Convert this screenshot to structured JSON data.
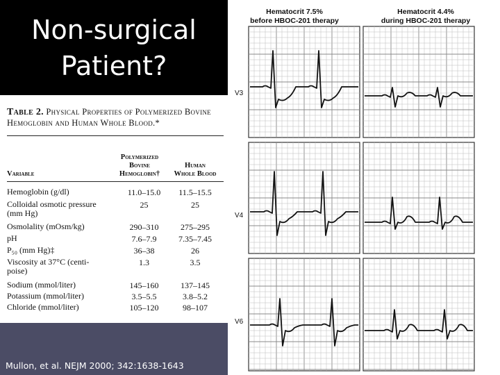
{
  "slide": {
    "title": "Non-surgical\nPatient?",
    "citation": "Mullon, et al. NEJM 2000; 342:1638-1643"
  },
  "table": {
    "caption_number": "Table 2.",
    "caption_text": "Physical Properties of Polymerized Bovine Hemoglobin and Human Whole Blood.*",
    "headers": {
      "variable": "Variable",
      "col1": "Polymerized\nBovine\nHemoglobin†",
      "col2": "Human\nWhole Blood"
    },
    "rows": [
      {
        "variable": "Hemoglobin (g/dl)",
        "v1": "11.0–15.0",
        "v2": "11.5–15.5"
      },
      {
        "variable": "Colloidal osmotic pressure\n   (mm Hg)",
        "v1": "25",
        "v2": "25"
      },
      {
        "variable": "Osmolality (mOsm/kg)",
        "v1": "290–310",
        "v2": "275–295"
      },
      {
        "variable": "pH",
        "v1": "7.6–7.9",
        "v2": "7.35–7.45"
      },
      {
        "variable": "P₅₀ (mm Hg)‡",
        "v1": "36–38",
        "v2": "26"
      },
      {
        "variable": "Viscosity at 37°C (centi-\n   poise)",
        "v1": "1.3",
        "v2": "3.5"
      },
      {
        "variable": "Sodium (mmol/liter)",
        "v1": "145–160",
        "v2": "137–145"
      },
      {
        "variable": "Potassium (mmol/liter)",
        "v1": "3.5–5.5",
        "v2": "3.8–5.2"
      },
      {
        "variable": "Chloride (mmol/liter)",
        "v1": "105–120",
        "v2": "98–107"
      }
    ]
  },
  "ecg": {
    "col_headers": [
      {
        "line1": "Hematocrit 7.5%",
        "line2": "before HBOC-201 therapy"
      },
      {
        "line1": "Hematocrit 4.4%",
        "line2": "during HBOC-201 therapy"
      }
    ],
    "leads": [
      "V3",
      "V4",
      "V6"
    ]
  }
}
